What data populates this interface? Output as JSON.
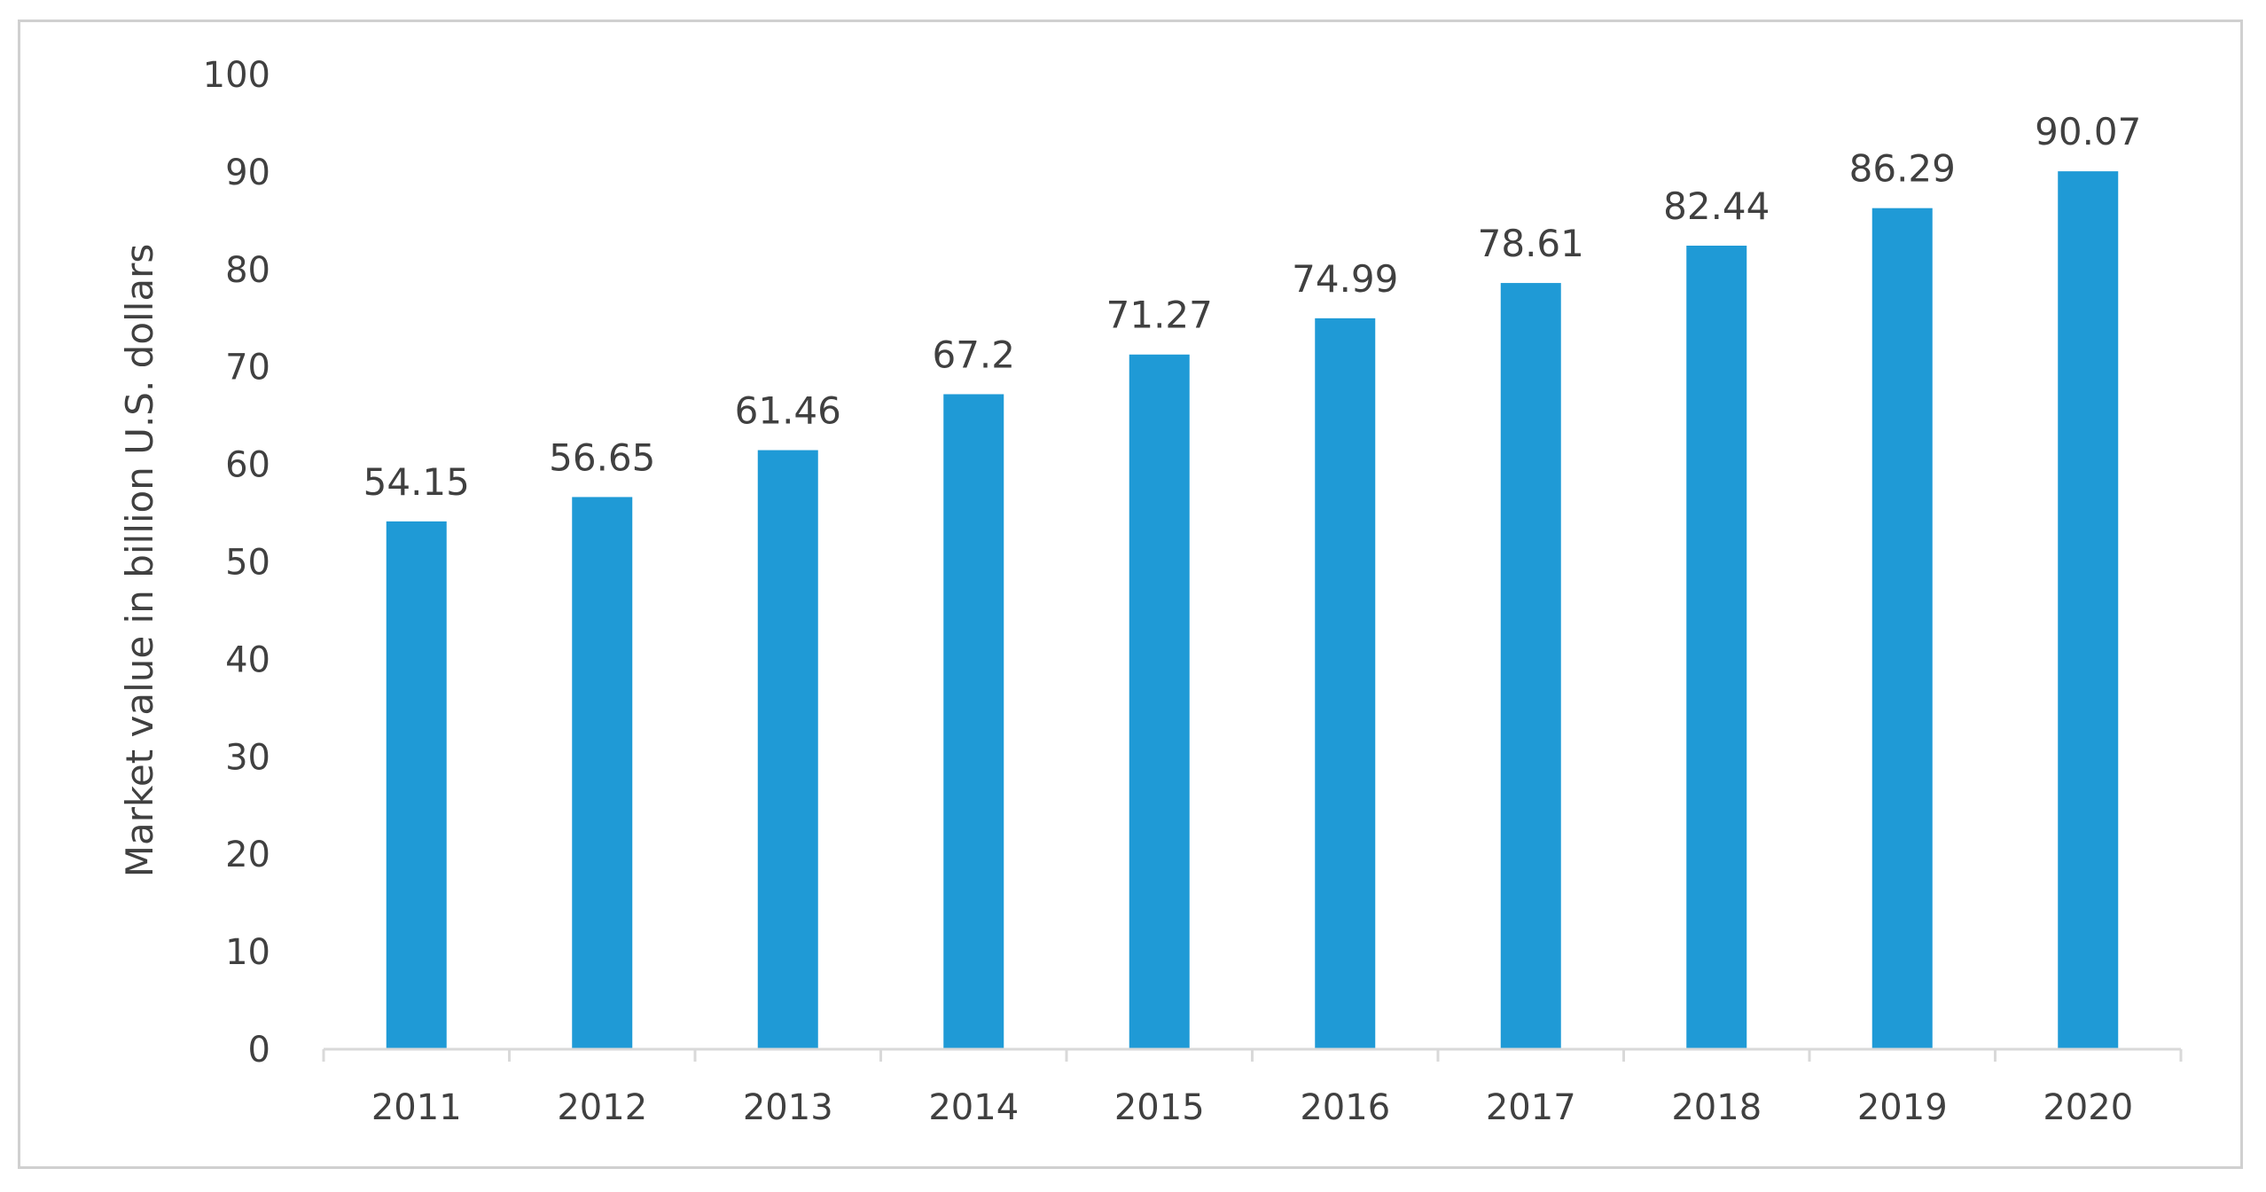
{
  "chart_data": {
    "type": "bar",
    "title": "",
    "xlabel": "",
    "ylabel": "Market value in billion U.S. dollars",
    "categories": [
      "2011",
      "2012",
      "2013",
      "2014",
      "2015",
      "2016",
      "2017",
      "2018",
      "2019",
      "2020"
    ],
    "values": [
      54.15,
      56.65,
      61.46,
      67.2,
      71.27,
      74.99,
      78.61,
      82.44,
      86.29,
      90.07
    ],
    "data_labels": [
      "54.15",
      "56.65",
      "61.46",
      "67.2",
      "71.27",
      "74.99",
      "78.61",
      "82.44",
      "86.29",
      "90.07"
    ],
    "ylim": [
      0,
      100
    ],
    "yticks": [
      0,
      10,
      20,
      30,
      40,
      50,
      60,
      70,
      80,
      90,
      100
    ],
    "grid": false,
    "legend": "none",
    "bar_color": "#1f9ad6",
    "axis_color": "#d9d9d9",
    "text_color": "#404040"
  }
}
